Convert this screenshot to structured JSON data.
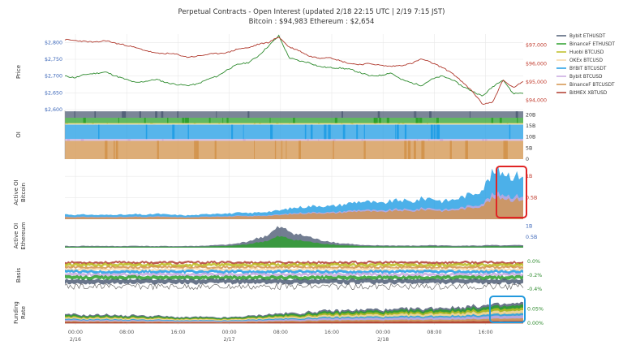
{
  "header": {
    "title": "Perpetual Contracts - Open Interest   (updated   2/18 22:15 UTC   |   2/19 7:15 JST)",
    "subtitle": "Bitcoin : $94,983    Ethereum : $2,654"
  },
  "colors": {
    "eth": "#2e8b2e",
    "btc": "#b03a2e",
    "left_axis": "#3a65b8",
    "right_axis": "#c0392b",
    "highlight_red": "#e02424",
    "highlight_blue": "#2299dd",
    "grid": "#e8e8e8"
  },
  "chart_data": [
    {
      "type": "line",
      "panel": "price",
      "ylabel": "Price",
      "x_ticks": [
        "00:00\n2/16",
        "08:00",
        "16:00",
        "00:00\n2/17",
        "08:00",
        "16:00",
        "00:00\n2/18",
        "08:00",
        "16:00"
      ],
      "left_ticks": [
        "$2,800",
        "$2,750",
        "$2,700",
        "$2,650",
        "$2,600"
      ],
      "right_ticks": [
        "$97,000",
        "$96,000",
        "$95,000",
        "$94,000"
      ],
      "ylim_left": [
        2600,
        2825
      ],
      "ylim_right": [
        93500,
        97600
      ],
      "series": [
        {
          "name": "Ethereum",
          "axis": "left",
          "color": "#2e8b2e",
          "values": [
            2700,
            2695,
            2705,
            2708,
            2712,
            2700,
            2690,
            2680,
            2685,
            2690,
            2680,
            2675,
            2672,
            2676,
            2690,
            2700,
            2720,
            2735,
            2740,
            2760,
            2790,
            2820,
            2755,
            2745,
            2740,
            2728,
            2725,
            2724,
            2720,
            2710,
            2700,
            2702,
            2710,
            2690,
            2680,
            2672,
            2690,
            2700,
            2690,
            2670,
            2655,
            2640,
            2668,
            2690,
            2648,
            2650
          ]
        },
        {
          "name": "Bitcoin",
          "axis": "right",
          "color": "#b03a2e",
          "values": [
            97300,
            97250,
            97200,
            97150,
            97250,
            97100,
            97000,
            96850,
            96700,
            96550,
            96550,
            96500,
            96350,
            96400,
            96500,
            96550,
            96600,
            96800,
            96850,
            97050,
            97150,
            97450,
            96900,
            96700,
            96400,
            96300,
            96350,
            96150,
            96000,
            95950,
            96000,
            95900,
            95850,
            95900,
            96000,
            96250,
            96050,
            95800,
            95500,
            95000,
            94500,
            93800,
            93900,
            95100,
            94700,
            95000
          ]
        }
      ]
    },
    {
      "type": "area",
      "panel": "oi",
      "ylabel": "OI",
      "right_ticks": [
        "20B",
        "15B",
        "10B",
        "5B",
        "0"
      ],
      "ylim": [
        0,
        22
      ]
    },
    {
      "type": "area",
      "panel": "active_oi_btc",
      "ylabel": "Active OI Bitcoin",
      "right_ticks": [
        "1B",
        "0.5B"
      ],
      "ylim": [
        0,
        1.25
      ],
      "values": [
        0.12,
        0.1,
        0.11,
        0.1,
        0.1,
        0.11,
        0.1,
        0.12,
        0.1,
        0.13,
        0.11,
        0.1,
        0.09,
        0.1,
        0.12,
        0.14,
        0.13,
        0.15,
        0.14,
        0.16,
        0.18,
        0.2,
        0.25,
        0.28,
        0.3,
        0.32,
        0.3,
        0.33,
        0.38,
        0.42,
        0.4,
        0.36,
        0.42,
        0.45,
        0.4,
        0.48,
        0.5,
        0.42,
        0.45,
        0.52,
        0.6,
        0.7,
        1.08,
        1.12,
        1.0,
        1.05
      ]
    },
    {
      "type": "area",
      "panel": "active_oi_eth",
      "ylabel": "Active OI Ethereum",
      "right_ticks": [
        "1B",
        "0.5B"
      ],
      "ylim": [
        0,
        1.1
      ],
      "values": [
        0.08,
        0.07,
        0.09,
        0.08,
        0.08,
        0.07,
        0.08,
        0.09,
        0.08,
        0.07,
        0.08,
        0.07,
        0.08,
        0.08,
        0.1,
        0.12,
        0.14,
        0.2,
        0.3,
        0.45,
        0.6,
        0.95,
        0.78,
        0.6,
        0.5,
        0.35,
        0.3,
        0.2,
        0.18,
        0.12,
        0.1,
        0.11,
        0.1,
        0.1,
        0.09,
        0.1,
        0.12,
        0.1,
        0.1,
        0.09,
        0.1,
        0.1,
        0.12,
        0.1,
        0.11,
        0.12
      ]
    },
    {
      "type": "area",
      "panel": "basis",
      "ylabel": "Basis",
      "right_ticks": [
        "0.0%",
        "-0.2%",
        "-0.4%"
      ],
      "ylim": [
        -0.45,
        0.05
      ]
    },
    {
      "type": "area",
      "panel": "funding",
      "ylabel": "Funding Rate",
      "right_ticks": [
        "0.05%",
        "0.00%"
      ],
      "ylim": [
        -0.005,
        0.08
      ],
      "values": [
        0.03,
        0.032,
        0.028,
        0.03,
        0.031,
        0.029,
        0.026,
        0.03,
        0.025,
        0.027,
        0.024,
        0.022,
        0.021,
        0.023,
        0.022,
        0.02,
        0.021,
        0.023,
        0.026,
        0.028,
        0.032,
        0.034,
        0.036,
        0.035,
        0.04,
        0.042,
        0.045,
        0.044,
        0.047,
        0.046,
        0.05,
        0.048,
        0.046,
        0.05,
        0.052,
        0.05,
        0.054,
        0.056,
        0.055,
        0.058,
        0.06,
        0.062,
        0.064,
        0.066,
        0.068,
        0.07
      ]
    }
  ],
  "legend": [
    {
      "label": "Bybit ETHUSDT",
      "color": "#4f5d75"
    },
    {
      "label": "BinanceF ETHUSDT",
      "color": "#2ca02c"
    },
    {
      "label": "Huobi BTCUSD",
      "color": "#bcbd22"
    },
    {
      "label": "OKEx BTCUSD",
      "color": "#f7d7a8"
    },
    {
      "label": "BYBIT BTCUSDT",
      "color": "#1f9ce4"
    },
    {
      "label": "Bybit BTCUSD",
      "color": "#c9a8e0"
    },
    {
      "label": "BinanceF BTCUSDT",
      "color": "#d2924a"
    },
    {
      "label": "BitMEX XBTUSD",
      "color": "#b03a2e"
    }
  ]
}
